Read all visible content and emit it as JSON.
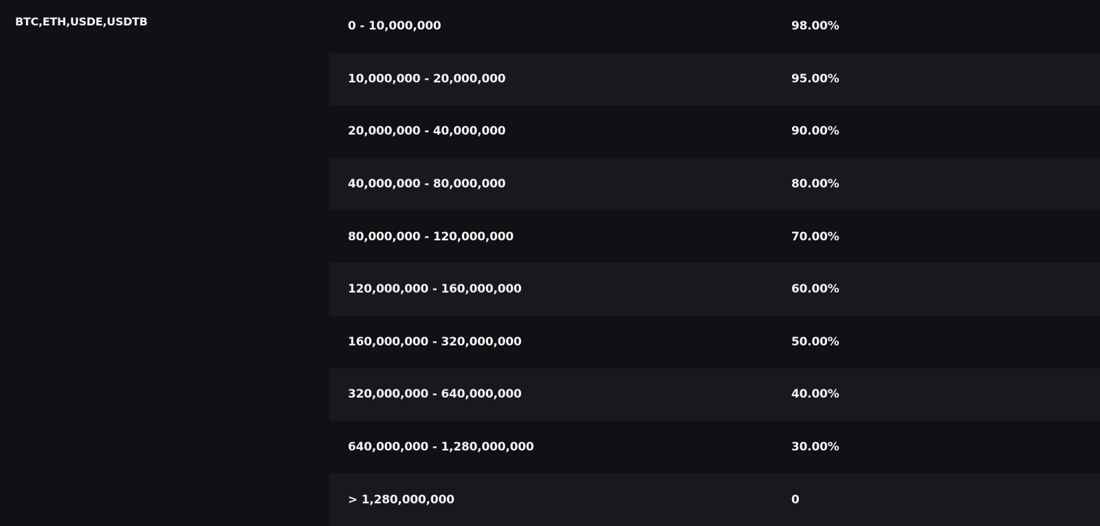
{
  "assets": "BTC,ETH,USDE,USDTB",
  "tiers": [
    {
      "range": "0 - 10,000,000",
      "ratio": "98.00%"
    },
    {
      "range": "10,000,000 - 20,000,000",
      "ratio": "95.00%"
    },
    {
      "range": "20,000,000 - 40,000,000",
      "ratio": "90.00%"
    },
    {
      "range": "40,000,000 - 80,000,000",
      "ratio": "80.00%"
    },
    {
      "range": "80,000,000 - 120,000,000",
      "ratio": "70.00%"
    },
    {
      "range": "120,000,000 - 160,000,000",
      "ratio": "60.00%"
    },
    {
      "range": "160,000,000 - 320,000,000",
      "ratio": "50.00%"
    },
    {
      "range": "320,000,000 - 640,000,000",
      "ratio": "40.00%"
    },
    {
      "range": "640,000,000 - 1,280,000,000",
      "ratio": "30.00%"
    },
    {
      "range": "> 1,280,000,000",
      "ratio": "0"
    }
  ]
}
